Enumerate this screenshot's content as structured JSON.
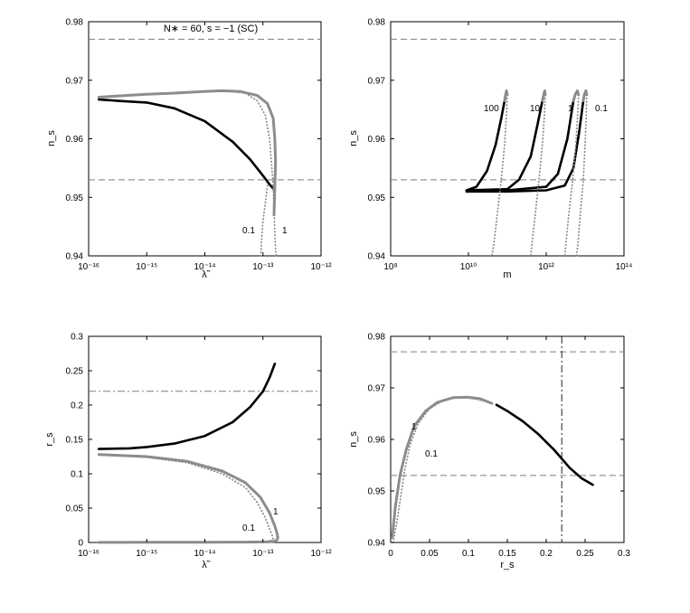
{
  "figure": {
    "title": "N∗ = 60,   s = −1  (SC)"
  },
  "colors": {
    "black": "#000000",
    "gray": "#8c8c8c",
    "dash": "#7f7f7f",
    "dashdot": "#7f7f7f"
  },
  "chart_data": [
    {
      "id": "ns-vs-lambda",
      "type": "line",
      "xlabel": "λ̃",
      "ylabel": "n_s",
      "x_scale": "log",
      "xlim": [
        1e-16,
        1e-12
      ],
      "ylim": [
        0.94,
        0.98
      ],
      "xtick_labels": [
        "10⁻¹⁶",
        "10⁻¹⁵",
        "10⁻¹⁴",
        "10⁻¹³",
        "10⁻¹²"
      ],
      "ytick_labels": [
        "0.94",
        "0.95",
        "0.96",
        "0.97",
        "0.98"
      ],
      "hlines": [
        {
          "y": 0.977,
          "style": "dashed"
        },
        {
          "y": 0.953,
          "style": "dashed"
        }
      ],
      "annotations": [
        "0.1",
        "1"
      ],
      "series": [
        {
          "style": "black-thick",
          "x": [
            1.5e-16,
            3e-16,
            1e-15,
            3e-15,
            1e-14,
            3e-14,
            6e-14,
            1e-13,
            1.3e-13,
            1.6e-13
          ],
          "y": [
            0.9667,
            0.9665,
            0.9662,
            0.9652,
            0.963,
            0.9595,
            0.9565,
            0.9537,
            0.9522,
            0.9512
          ]
        },
        {
          "style": "gray-thick",
          "x": [
            1.5e-16,
            3e-16,
            1e-15,
            3e-15,
            1e-14,
            2e-14,
            4e-14,
            8e-14,
            1.2e-13,
            1.5e-13,
            1.6e-13,
            1.65e-13,
            1.6e-13,
            1.55e-13
          ],
          "y": [
            0.9671,
            0.9673,
            0.9676,
            0.9678,
            0.9681,
            0.9682,
            0.9681,
            0.9674,
            0.966,
            0.9635,
            0.96,
            0.956,
            0.952,
            0.947
          ]
        },
        {
          "style": "gray-dotted",
          "x": [
            1.5e-16,
            1e-15,
            5e-15,
            2e-14,
            5e-14,
            8e-14,
            1.1e-13,
            1.3e-13,
            1.4e-13,
            1.5e-13,
            1.55e-13,
            1.6e-13,
            1.65e-13,
            1.7e-13,
            1.75e-13,
            1.8e-13
          ],
          "y": [
            0.9671,
            0.9676,
            0.968,
            0.9682,
            0.9678,
            0.9665,
            0.964,
            0.96,
            0.956,
            0.952,
            0.948,
            0.944,
            0.941,
            0.94,
            0.94,
            0.94
          ]
        },
        {
          "style": "gray-dotted",
          "x": [
            1.2e-13,
            1.1e-13,
            1e-13,
            9.5e-14,
            9.2e-14
          ],
          "y": [
            0.952,
            0.949,
            0.946,
            0.943,
            0.94
          ]
        }
      ]
    },
    {
      "id": "ns-vs-m",
      "type": "line",
      "xlabel": "m",
      "ylabel": "n_s",
      "x_scale": "log",
      "xlim": [
        100000000.0,
        100000000000000.0
      ],
      "ylim": [
        0.94,
        0.98
      ],
      "xtick_labels": [
        "10⁸",
        "10¹⁰",
        "10¹²",
        "10¹⁴"
      ],
      "ytick_labels": [
        "0.94",
        "0.95",
        "0.96",
        "0.97",
        "0.98"
      ],
      "hlines": [
        {
          "y": 0.977,
          "style": "dashed"
        },
        {
          "y": 0.953,
          "style": "dashed"
        }
      ],
      "annotations": [
        "100",
        "10",
        "1",
        "0.1"
      ],
      "series": [
        {
          "name": "100",
          "style": "black-thick",
          "x": [
            9000000000.0,
            16000000000.0,
            30000000000.0,
            50000000000.0,
            70000000000.0,
            85000000000.0
          ],
          "y": [
            0.9512,
            0.9518,
            0.9545,
            0.959,
            0.9635,
            0.9665
          ]
        },
        {
          "name": "10",
          "style": "black-thick",
          "x": [
            9000000000.0,
            100000000000.0,
            200000000000.0,
            400000000000.0,
            600000000000.0,
            800000000000.0
          ],
          "y": [
            0.9512,
            0.9514,
            0.953,
            0.957,
            0.9625,
            0.9665
          ]
        },
        {
          "name": "1",
          "style": "black-thick",
          "x": [
            9000000000.0,
            100000000000.0,
            1000000000000.0,
            2000000000000.0,
            3500000000000.0,
            5000000000000.0
          ],
          "y": [
            0.951,
            0.9512,
            0.9518,
            0.954,
            0.96,
            0.9665
          ]
        },
        {
          "name": "0.1",
          "style": "black-thick",
          "x": [
            9000000000.0,
            100000000000.0,
            1000000000000.0,
            3000000000000.0,
            5000000000000.0,
            7000000000000.0,
            9000000000000.0
          ],
          "y": [
            0.951,
            0.951,
            0.9512,
            0.952,
            0.955,
            0.961,
            0.9665
          ]
        },
        {
          "style": "gray-thick",
          "x": [
            85000000000.0,
            90000000000.0,
            95000000000.0,
            100000000000.0
          ],
          "y": [
            0.9665,
            0.9675,
            0.9682,
            0.9675
          ]
        },
        {
          "style": "gray-thick",
          "x": [
            800000000000.0,
            870000000000.0,
            920000000000.0,
            950000000000.0
          ],
          "y": [
            0.9665,
            0.9676,
            0.9682,
            0.9675
          ]
        },
        {
          "style": "gray-thick",
          "x": [
            5000000000000.0,
            5600000000000.0,
            6300000000000.0,
            6800000000000.0
          ],
          "y": [
            0.9665,
            0.9676,
            0.9682,
            0.9675
          ]
        },
        {
          "style": "gray-thick",
          "x": [
            9000000000000.0,
            9600000000000.0,
            10500000000000.0,
            11000000000000.0
          ],
          "y": [
            0.9665,
            0.9676,
            0.9682,
            0.9675
          ]
        },
        {
          "style": "gray-dotted",
          "x": [
            100000000000.0,
            95000000000.0,
            85000000000.0,
            70000000000.0,
            55000000000.0,
            45000000000.0,
            40000000000.0
          ],
          "y": [
            0.9675,
            0.964,
            0.959,
            0.953,
            0.947,
            0.942,
            0.94
          ]
        },
        {
          "style": "gray-dotted",
          "x": [
            950000000000.0,
            900000000000.0,
            800000000000.0,
            650000000000.0,
            520000000000.0,
            430000000000.0,
            400000000000.0
          ],
          "y": [
            0.9675,
            0.964,
            0.959,
            0.953,
            0.947,
            0.942,
            0.94
          ]
        },
        {
          "style": "gray-dotted",
          "x": [
            6800000000000.0,
            6400000000000.0,
            5800000000000.0,
            4800000000000.0,
            3800000000000.0,
            3200000000000.0,
            3000000000000.0
          ],
          "y": [
            0.9675,
            0.964,
            0.959,
            0.953,
            0.947,
            0.942,
            0.94
          ]
        },
        {
          "style": "gray-dotted",
          "x": [
            11000000000000.0,
            10700000000000.0,
            10000000000000.0,
            9000000000000.0,
            7500000000000.0,
            6500000000000.0,
            6000000000000.0
          ],
          "y": [
            0.9675,
            0.964,
            0.959,
            0.953,
            0.947,
            0.942,
            0.94
          ]
        }
      ]
    },
    {
      "id": "rs-vs-lambda",
      "type": "line",
      "xlabel": "λ̃",
      "ylabel": "r_s",
      "x_scale": "log",
      "xlim": [
        1e-16,
        1e-12
      ],
      "ylim": [
        0,
        0.3
      ],
      "xtick_labels": [
        "10⁻¹⁶",
        "10⁻¹⁵",
        "10⁻¹⁴",
        "10⁻¹³",
        "10⁻¹²"
      ],
      "ytick_labels": [
        "0",
        "0.05",
        "0.1",
        "0.15",
        "0.2",
        "0.25",
        "0.3"
      ],
      "hlines": [
        {
          "y": 0.22,
          "style": "dashdot"
        }
      ],
      "annotations": [
        "0.1",
        "1"
      ],
      "series": [
        {
          "style": "black-thick",
          "x": [
            1.5e-16,
            5e-16,
            1e-15,
            3e-15,
            1e-14,
            3e-14,
            6e-14,
            1e-13,
            1.3e-13,
            1.6e-13
          ],
          "y": [
            0.136,
            0.137,
            0.139,
            0.144,
            0.155,
            0.175,
            0.197,
            0.22,
            0.24,
            0.26
          ]
        },
        {
          "style": "gray-thick",
          "x": [
            1.5e-16,
            1e-15,
            5e-15,
            2e-14,
            5e-14,
            9e-14,
            1.3e-13,
            1.6e-13,
            1.75e-13,
            1.8e-13,
            1.75e-13,
            1.6e-13,
            1.3e-13,
            1e-13,
            5e-14,
            1e-14,
            1e-15,
            1.5e-16
          ],
          "y": [
            0.128,
            0.125,
            0.118,
            0.104,
            0.087,
            0.066,
            0.043,
            0.024,
            0.013,
            0.007,
            0.004,
            0.002,
            0.001,
            0.0008,
            0.0005,
            0.0003,
            0.0002,
            0.0001
          ]
        },
        {
          "style": "gray-dotted",
          "x": [
            1.5e-16,
            1e-15,
            5e-15,
            2e-14,
            5e-14,
            8e-14,
            1.1e-13,
            1.3e-13,
            1.45e-13,
            1.5e-13,
            1.4e-13,
            1.2e-13,
            9e-14,
            5e-14,
            1e-14,
            1e-15
          ],
          "y": [
            0.128,
            0.124,
            0.116,
            0.1,
            0.08,
            0.058,
            0.036,
            0.02,
            0.01,
            0.005,
            0.003,
            0.002,
            0.0012,
            0.0007,
            0.0004,
            0.0002
          ]
        }
      ]
    },
    {
      "id": "ns-vs-rs",
      "type": "line",
      "xlabel": "r_s",
      "ylabel": "n_s",
      "xlim": [
        0,
        0.3
      ],
      "ylim": [
        0.94,
        0.98
      ],
      "xtick_labels": [
        "0",
        "0.05",
        "0.1",
        "0.15",
        "0.2",
        "0.25",
        "0.3"
      ],
      "ytick_labels": [
        "0.94",
        "0.95",
        "0.96",
        "0.97",
        "0.98"
      ],
      "hlines": [
        {
          "y": 0.977,
          "style": "dashed"
        },
        {
          "y": 0.953,
          "style": "dashed"
        }
      ],
      "vlines": [
        {
          "x": 0.22,
          "style": "dashdot"
        }
      ],
      "annotations": [
        "1",
        "0.1"
      ],
      "series": [
        {
          "style": "black-thick",
          "x": [
            0.136,
            0.15,
            0.17,
            0.19,
            0.21,
            0.23,
            0.245,
            0.26
          ],
          "y": [
            0.9667,
            0.9655,
            0.9635,
            0.961,
            0.958,
            0.9545,
            0.9525,
            0.9512
          ]
        },
        {
          "style": "gray-thick",
          "x": [
            0.002,
            0.006,
            0.012,
            0.02,
            0.03,
            0.045,
            0.06,
            0.08,
            0.1,
            0.115,
            0.13
          ],
          "y": [
            0.941,
            0.947,
            0.953,
            0.958,
            0.9625,
            0.9655,
            0.9672,
            0.9681,
            0.9682,
            0.9679,
            0.967
          ]
        },
        {
          "style": "gray-dotted",
          "x": [
            0.003,
            0.008,
            0.013,
            0.018,
            0.025,
            0.035,
            0.05,
            0.07,
            0.09,
            0.11,
            0.128
          ],
          "y": [
            0.94,
            0.944,
            0.949,
            0.954,
            0.959,
            0.963,
            0.966,
            0.9677,
            0.9682,
            0.9678,
            0.9671
          ]
        }
      ]
    }
  ]
}
